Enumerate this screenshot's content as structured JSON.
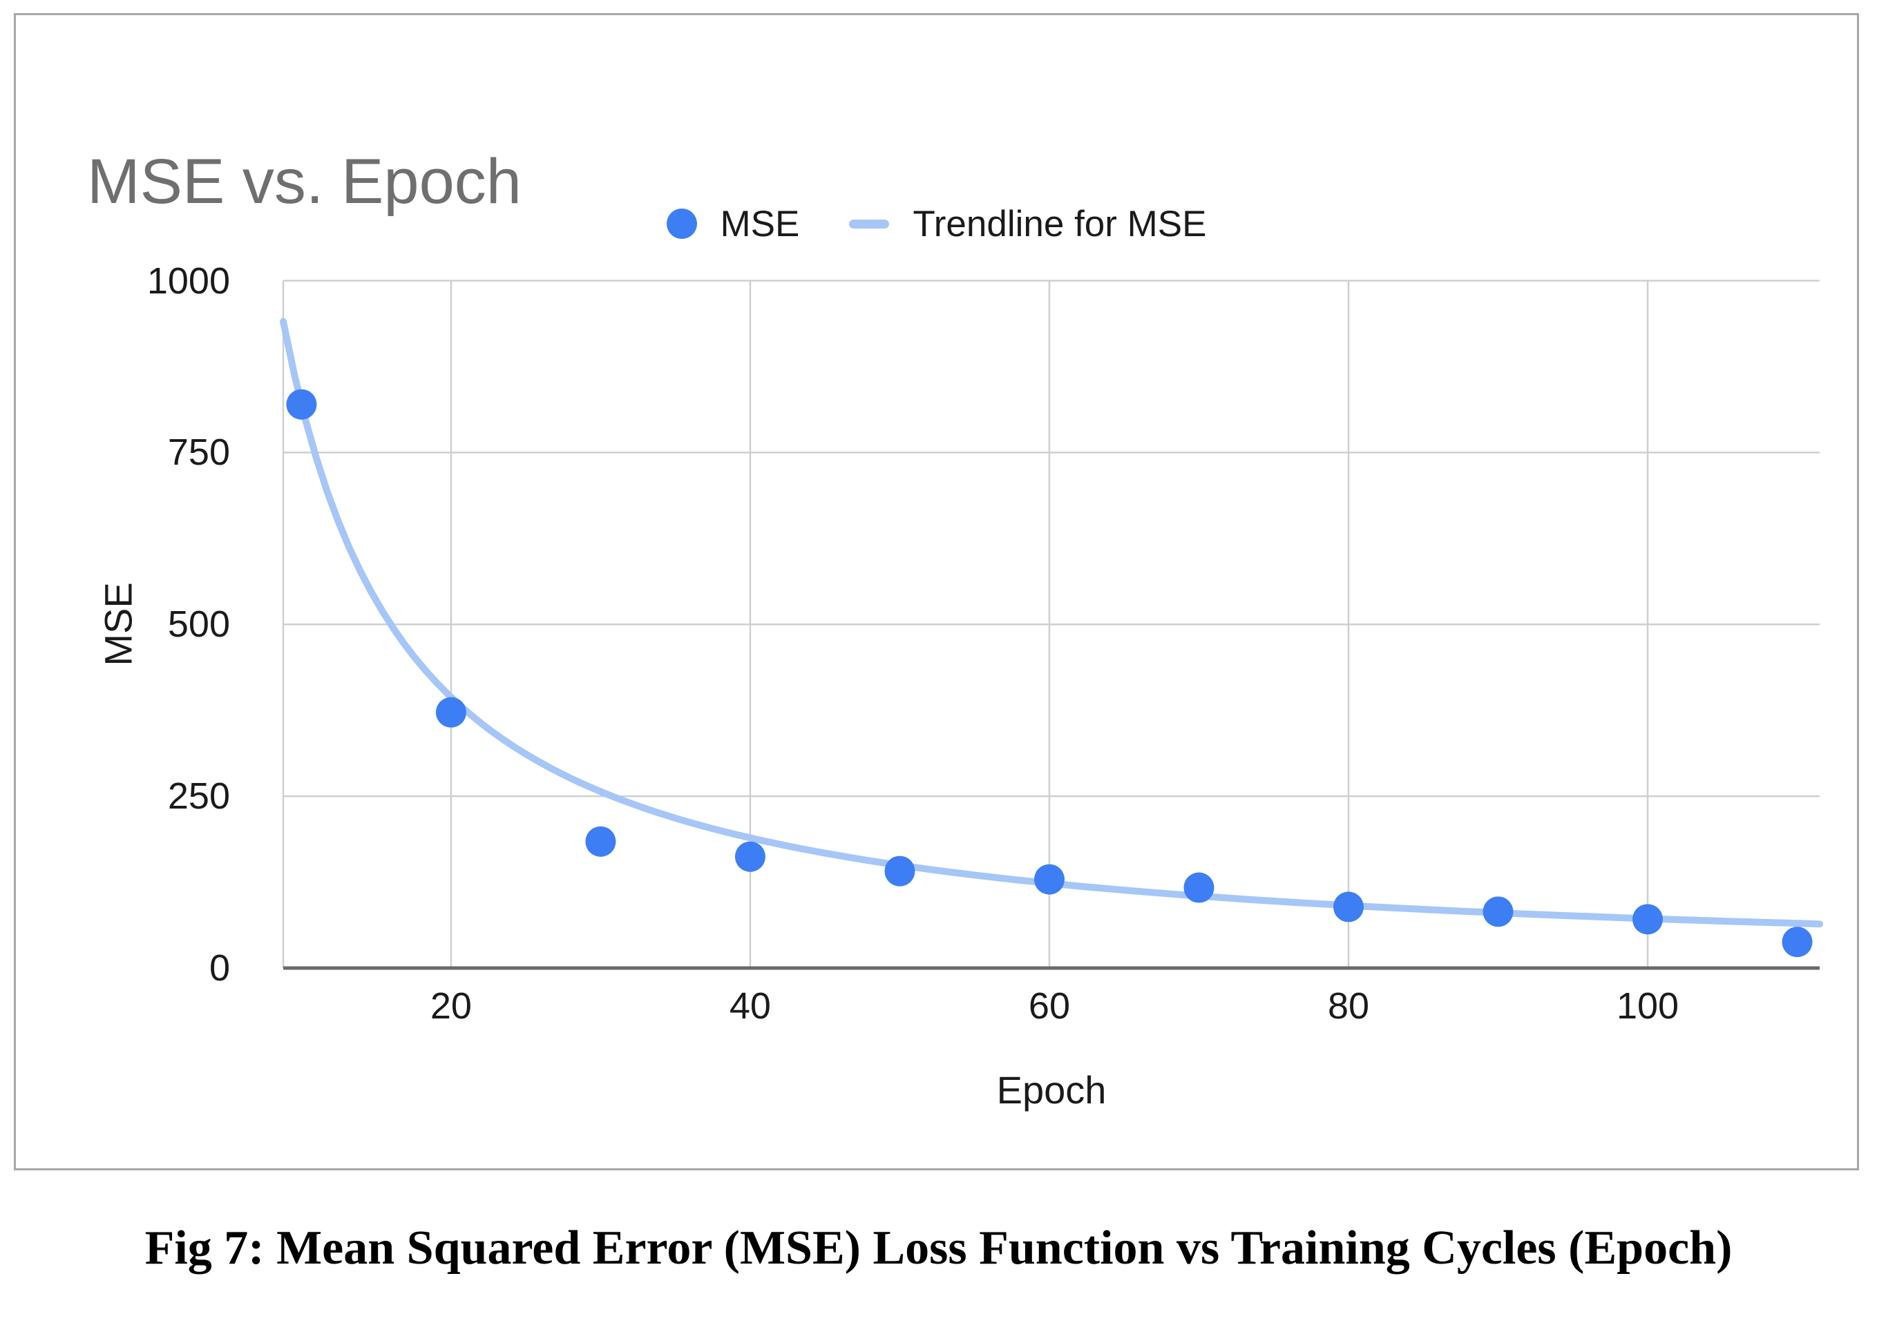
{
  "page": {
    "background": "#ffffff"
  },
  "chart": {
    "frame_border_color": "#a6a6a6",
    "title_color": "#6f6f6f",
    "series_color": "#3d7ef4",
    "trendline_color": "#a6c6f7",
    "gridline_color": "#cfcfcf",
    "axis_line_color": "#6a6a6a",
    "text_color": "#1a1a1a"
  },
  "chart_data": {
    "type": "scatter",
    "title": "MSE vs. Epoch",
    "xlabel": "Epoch",
    "ylabel": "MSE",
    "series": [
      {
        "name": "MSE",
        "x": [
          10,
          20,
          30,
          40,
          50,
          60,
          70,
          80,
          90,
          100,
          110
        ],
        "y": [
          820,
          372,
          184,
          162,
          141,
          129,
          117,
          89,
          82,
          71,
          38
        ]
      }
    ],
    "trendline": {
      "name": "Trendline for MSE",
      "series": "MSE",
      "fit": "power",
      "a": 9348,
      "b": -1.057
    },
    "xlim": [
      8.78,
      111.5
    ],
    "ylim": [
      0,
      1000
    ],
    "xticks": [
      20,
      40,
      60,
      80,
      100
    ],
    "yticks": [
      0,
      250,
      500,
      750,
      1000
    ],
    "grid": true,
    "legend_position": "top-center"
  },
  "caption": {
    "text": "Fig 7: Mean Squared Error (MSE) Loss Function vs Training Cycles (Epoch)"
  }
}
